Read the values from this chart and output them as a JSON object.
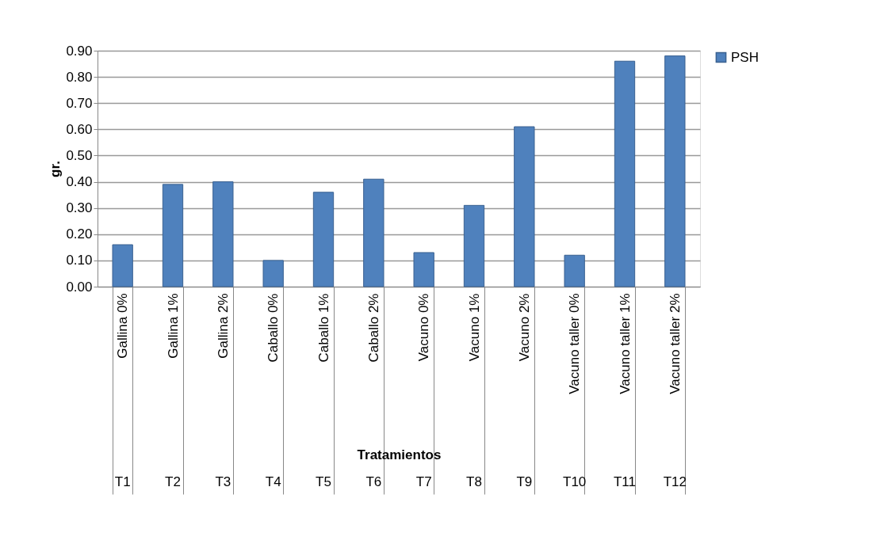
{
  "chart_data": {
    "type": "bar",
    "xlabel": "Tratamientos",
    "ylabel": "gr.",
    "categories": [
      "Gallina 0%",
      "Gallina 1%",
      "Gallina 2%",
      "Caballo 0%",
      "Caballo 1%",
      "Caballo 2%",
      "Vacuno 0%",
      "Vacuno 1%",
      "Vacuno 2%",
      "Vacuno taller 0%",
      "Vacuno taller 1%",
      "Vacuno taller 2%"
    ],
    "series": [
      {
        "name": "PSH",
        "color": "#4f81bd",
        "values": [
          0.16,
          0.39,
          0.4,
          0.1,
          0.36,
          0.41,
          0.13,
          0.31,
          0.61,
          0.12,
          0.86,
          0.88
        ]
      }
    ],
    "ylim": [
      0,
      0.9
    ],
    "yticks": [
      {
        "value": 0,
        "label": "0.00"
      },
      {
        "value": 0.1,
        "label": "0.10"
      },
      {
        "value": 0.2,
        "label": "0.20"
      },
      {
        "value": 0.3,
        "label": "0.30"
      },
      {
        "value": 0.4,
        "label": "0.40"
      },
      {
        "value": 0.5,
        "label": "0.50"
      },
      {
        "value": 0.6,
        "label": "0.60"
      },
      {
        "value": 0.7,
        "label": "0.70"
      },
      {
        "value": 0.8,
        "label": "0.80"
      },
      {
        "value": 0.9,
        "label": "0.90"
      }
    ],
    "annotations": [
      "T1",
      "T2",
      "T3",
      "T4",
      "T5",
      "T6",
      "T7",
      "T8",
      "T9",
      "T10",
      "T11",
      "T12"
    ],
    "grid": "y",
    "legend": "right"
  }
}
